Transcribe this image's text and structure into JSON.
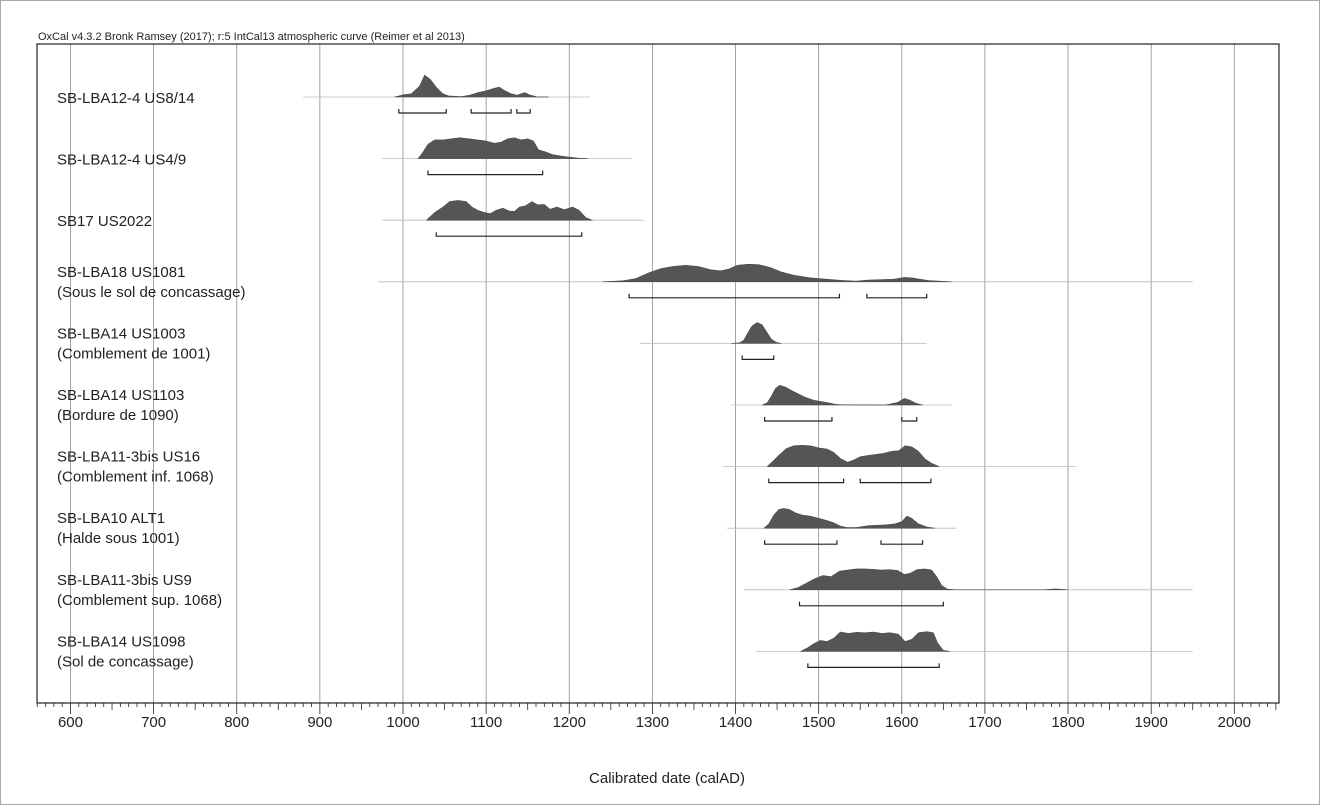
{
  "header": "OxCal v4.3.2 Bronk Ramsey (2017); r:5 IntCal13 atmospheric curve (Reimer et al 2013)",
  "colors": {
    "density": "#555555",
    "grid": "#8c8c8c",
    "axis": "#222222",
    "text": "#222222"
  },
  "chart_data": {
    "type": "area",
    "title": "",
    "xlabel": "Calibrated date (calAD)",
    "ylabel": "",
    "xlim": [
      560,
      2060
    ],
    "x_ticks": [
      600,
      700,
      800,
      900,
      1000,
      1100,
      1200,
      1300,
      1400,
      1500,
      1600,
      1700,
      1800,
      1900,
      2000
    ],
    "grid": true,
    "series": [
      {
        "name": "SB-LBA12-4 US8/14",
        "sublabel": "",
        "range": [
          880,
          1225
        ],
        "density": [
          [
            990,
            0
          ],
          [
            1000,
            0.1
          ],
          [
            1010,
            0.15
          ],
          [
            1020,
            0.5
          ],
          [
            1026,
            1.0
          ],
          [
            1033,
            0.8
          ],
          [
            1040,
            0.45
          ],
          [
            1048,
            0.15
          ],
          [
            1055,
            0.05
          ],
          [
            1070,
            0.02
          ],
          [
            1080,
            0.08
          ],
          [
            1090,
            0.2
          ],
          [
            1100,
            0.28
          ],
          [
            1110,
            0.4
          ],
          [
            1116,
            0.45
          ],
          [
            1122,
            0.3
          ],
          [
            1130,
            0.15
          ],
          [
            1137,
            0.08
          ],
          [
            1142,
            0.15
          ],
          [
            1147,
            0.2
          ],
          [
            1152,
            0.1
          ],
          [
            1162,
            0
          ],
          [
            1175,
            0
          ]
        ],
        "intervals": [
          [
            995,
            1052
          ],
          [
            1082,
            1130
          ],
          [
            1137,
            1153
          ]
        ]
      },
      {
        "name": "SB-LBA12-4 US4/9",
        "sublabel": "",
        "range": [
          975,
          1275
        ],
        "density": [
          [
            1018,
            0
          ],
          [
            1024,
            0.3
          ],
          [
            1030,
            0.65
          ],
          [
            1038,
            0.85
          ],
          [
            1048,
            0.85
          ],
          [
            1058,
            0.9
          ],
          [
            1068,
            0.95
          ],
          [
            1080,
            0.9
          ],
          [
            1090,
            0.85
          ],
          [
            1100,
            0.8
          ],
          [
            1110,
            0.7
          ],
          [
            1118,
            0.75
          ],
          [
            1126,
            0.9
          ],
          [
            1134,
            0.95
          ],
          [
            1142,
            0.85
          ],
          [
            1150,
            0.9
          ],
          [
            1157,
            0.8
          ],
          [
            1163,
            0.4
          ],
          [
            1172,
            0.3
          ],
          [
            1180,
            0.18
          ],
          [
            1190,
            0.12
          ],
          [
            1200,
            0.07
          ],
          [
            1212,
            0.02
          ],
          [
            1222,
            0
          ]
        ],
        "intervals": [
          [
            1030,
            1168
          ]
        ]
      },
      {
        "name": "SB17 US2022",
        "sublabel": "",
        "range": [
          975,
          1290
        ],
        "density": [
          [
            1028,
            0
          ],
          [
            1038,
            0.35
          ],
          [
            1048,
            0.6
          ],
          [
            1056,
            0.85
          ],
          [
            1066,
            0.9
          ],
          [
            1076,
            0.85
          ],
          [
            1083,
            0.6
          ],
          [
            1090,
            0.45
          ],
          [
            1098,
            0.35
          ],
          [
            1105,
            0.3
          ],
          [
            1112,
            0.45
          ],
          [
            1120,
            0.55
          ],
          [
            1128,
            0.42
          ],
          [
            1134,
            0.4
          ],
          [
            1140,
            0.6
          ],
          [
            1147,
            0.65
          ],
          [
            1155,
            0.85
          ],
          [
            1162,
            0.7
          ],
          [
            1170,
            0.72
          ],
          [
            1177,
            0.5
          ],
          [
            1185,
            0.6
          ],
          [
            1194,
            0.48
          ],
          [
            1204,
            0.6
          ],
          [
            1212,
            0.45
          ],
          [
            1220,
            0.12
          ],
          [
            1228,
            0
          ]
        ],
        "intervals": [
          [
            1040,
            1215
          ]
        ]
      },
      {
        "name": "SB-LBA18 US1081",
        "sublabel": "(Sous le sol de concassage)",
        "range": [
          970,
          1950
        ],
        "density": [
          [
            1240,
            0
          ],
          [
            1265,
            0.05
          ],
          [
            1280,
            0.15
          ],
          [
            1295,
            0.4
          ],
          [
            1310,
            0.6
          ],
          [
            1325,
            0.7
          ],
          [
            1340,
            0.75
          ],
          [
            1355,
            0.7
          ],
          [
            1370,
            0.55
          ],
          [
            1382,
            0.5
          ],
          [
            1392,
            0.58
          ],
          [
            1402,
            0.75
          ],
          [
            1415,
            0.8
          ],
          [
            1428,
            0.78
          ],
          [
            1442,
            0.65
          ],
          [
            1455,
            0.45
          ],
          [
            1470,
            0.3
          ],
          [
            1490,
            0.18
          ],
          [
            1510,
            0.12
          ],
          [
            1530,
            0.06
          ],
          [
            1545,
            0.03
          ],
          [
            1560,
            0.08
          ],
          [
            1575,
            0.1
          ],
          [
            1590,
            0.12
          ],
          [
            1603,
            0.2
          ],
          [
            1612,
            0.18
          ],
          [
            1622,
            0.12
          ],
          [
            1632,
            0.06
          ],
          [
            1645,
            0.03
          ],
          [
            1660,
            0
          ]
        ],
        "intervals": [
          [
            1272,
            1525
          ],
          [
            1558,
            1630
          ]
        ]
      },
      {
        "name": "SB-LBA14 US1003",
        "sublabel": "(Comblement de 1001)",
        "range": [
          1285,
          1630
        ],
        "density": [
          [
            1395,
            0
          ],
          [
            1405,
            0.03
          ],
          [
            1410,
            0.15
          ],
          [
            1415,
            0.5
          ],
          [
            1420,
            0.8
          ],
          [
            1426,
            0.95
          ],
          [
            1432,
            0.85
          ],
          [
            1438,
            0.5
          ],
          [
            1443,
            0.2
          ],
          [
            1449,
            0.05
          ],
          [
            1455,
            0
          ]
        ],
        "intervals": [
          [
            1408,
            1446
          ]
        ]
      },
      {
        "name": "SB-LBA14 US1103",
        "sublabel": "(Bordure de 1090)",
        "range": [
          1395,
          1660
        ],
        "density": [
          [
            1432,
            0
          ],
          [
            1438,
            0.1
          ],
          [
            1443,
            0.4
          ],
          [
            1448,
            0.75
          ],
          [
            1453,
            0.9
          ],
          [
            1460,
            0.82
          ],
          [
            1468,
            0.65
          ],
          [
            1476,
            0.5
          ],
          [
            1484,
            0.35
          ],
          [
            1494,
            0.22
          ],
          [
            1504,
            0.15
          ],
          [
            1512,
            0.1
          ],
          [
            1520,
            0.03
          ],
          [
            1530,
            0.01
          ],
          [
            1580,
            0
          ],
          [
            1595,
            0.12
          ],
          [
            1603,
            0.3
          ],
          [
            1610,
            0.22
          ],
          [
            1617,
            0.08
          ],
          [
            1625,
            0
          ]
        ],
        "intervals": [
          [
            1435,
            1516
          ],
          [
            1600,
            1618
          ]
        ]
      },
      {
        "name": "SB-LBA11-3bis US16",
        "sublabel": "(Comblement inf. 1068)",
        "range": [
          1385,
          1810
        ],
        "density": [
          [
            1438,
            0
          ],
          [
            1445,
            0.25
          ],
          [
            1453,
            0.55
          ],
          [
            1461,
            0.82
          ],
          [
            1470,
            0.95
          ],
          [
            1480,
            0.97
          ],
          [
            1490,
            0.95
          ],
          [
            1500,
            0.85
          ],
          [
            1510,
            0.8
          ],
          [
            1518,
            0.65
          ],
          [
            1527,
            0.35
          ],
          [
            1535,
            0.2
          ],
          [
            1542,
            0.3
          ],
          [
            1550,
            0.45
          ],
          [
            1558,
            0.5
          ],
          [
            1568,
            0.55
          ],
          [
            1578,
            0.6
          ],
          [
            1588,
            0.7
          ],
          [
            1596,
            0.72
          ],
          [
            1604,
            0.95
          ],
          [
            1612,
            0.9
          ],
          [
            1620,
            0.7
          ],
          [
            1628,
            0.35
          ],
          [
            1636,
            0.15
          ],
          [
            1645,
            0
          ]
        ],
        "intervals": [
          [
            1440,
            1530
          ],
          [
            1550,
            1635
          ]
        ]
      },
      {
        "name": "SB-LBA10 ALT1",
        "sublabel": "(Halde sous 1001)",
        "range": [
          1390,
          1665
        ],
        "density": [
          [
            1434,
            0
          ],
          [
            1440,
            0.2
          ],
          [
            1446,
            0.6
          ],
          [
            1452,
            0.85
          ],
          [
            1458,
            0.9
          ],
          [
            1465,
            0.85
          ],
          [
            1472,
            0.7
          ],
          [
            1480,
            0.6
          ],
          [
            1490,
            0.55
          ],
          [
            1500,
            0.45
          ],
          [
            1510,
            0.35
          ],
          [
            1518,
            0.25
          ],
          [
            1526,
            0.1
          ],
          [
            1534,
            0.03
          ],
          [
            1545,
            0.03
          ],
          [
            1560,
            0.12
          ],
          [
            1580,
            0.15
          ],
          [
            1592,
            0.2
          ],
          [
            1600,
            0.3
          ],
          [
            1606,
            0.55
          ],
          [
            1612,
            0.45
          ],
          [
            1620,
            0.2
          ],
          [
            1630,
            0.06
          ],
          [
            1640,
            0
          ]
        ],
        "intervals": [
          [
            1435,
            1522
          ],
          [
            1575,
            1625
          ]
        ]
      },
      {
        "name": "SB-LBA11-3bis US9",
        "sublabel": "(Comblement sup. 1068)",
        "range": [
          1410,
          1950
        ],
        "density": [
          [
            1465,
            0
          ],
          [
            1475,
            0.1
          ],
          [
            1485,
            0.3
          ],
          [
            1495,
            0.5
          ],
          [
            1505,
            0.65
          ],
          [
            1515,
            0.6
          ],
          [
            1525,
            0.85
          ],
          [
            1535,
            0.9
          ],
          [
            1545,
            0.95
          ],
          [
            1555,
            0.95
          ],
          [
            1565,
            0.93
          ],
          [
            1575,
            0.9
          ],
          [
            1585,
            0.92
          ],
          [
            1595,
            0.88
          ],
          [
            1603,
            0.7
          ],
          [
            1610,
            0.75
          ],
          [
            1618,
            0.92
          ],
          [
            1628,
            0.95
          ],
          [
            1636,
            0.9
          ],
          [
            1642,
            0.6
          ],
          [
            1648,
            0.2
          ],
          [
            1655,
            0.03
          ],
          [
            1665,
            0
          ],
          [
            1770,
            0
          ],
          [
            1785,
            0.04
          ],
          [
            1800,
            0
          ]
        ],
        "intervals": [
          [
            1477,
            1650
          ]
        ]
      },
      {
        "name": "SB-LBA14 US1098",
        "sublabel": "(Sol de concassage)",
        "range": [
          1425,
          1950
        ],
        "density": [
          [
            1478,
            0
          ],
          [
            1486,
            0.15
          ],
          [
            1494,
            0.35
          ],
          [
            1502,
            0.5
          ],
          [
            1510,
            0.45
          ],
          [
            1518,
            0.6
          ],
          [
            1526,
            0.88
          ],
          [
            1536,
            0.82
          ],
          [
            1546,
            0.87
          ],
          [
            1556,
            0.85
          ],
          [
            1566,
            0.88
          ],
          [
            1576,
            0.82
          ],
          [
            1586,
            0.85
          ],
          [
            1596,
            0.78
          ],
          [
            1604,
            0.45
          ],
          [
            1612,
            0.55
          ],
          [
            1620,
            0.85
          ],
          [
            1630,
            0.9
          ],
          [
            1638,
            0.85
          ],
          [
            1643,
            0.4
          ],
          [
            1650,
            0.05
          ],
          [
            1658,
            0
          ]
        ],
        "intervals": [
          [
            1487,
            1645
          ]
        ]
      }
    ]
  }
}
